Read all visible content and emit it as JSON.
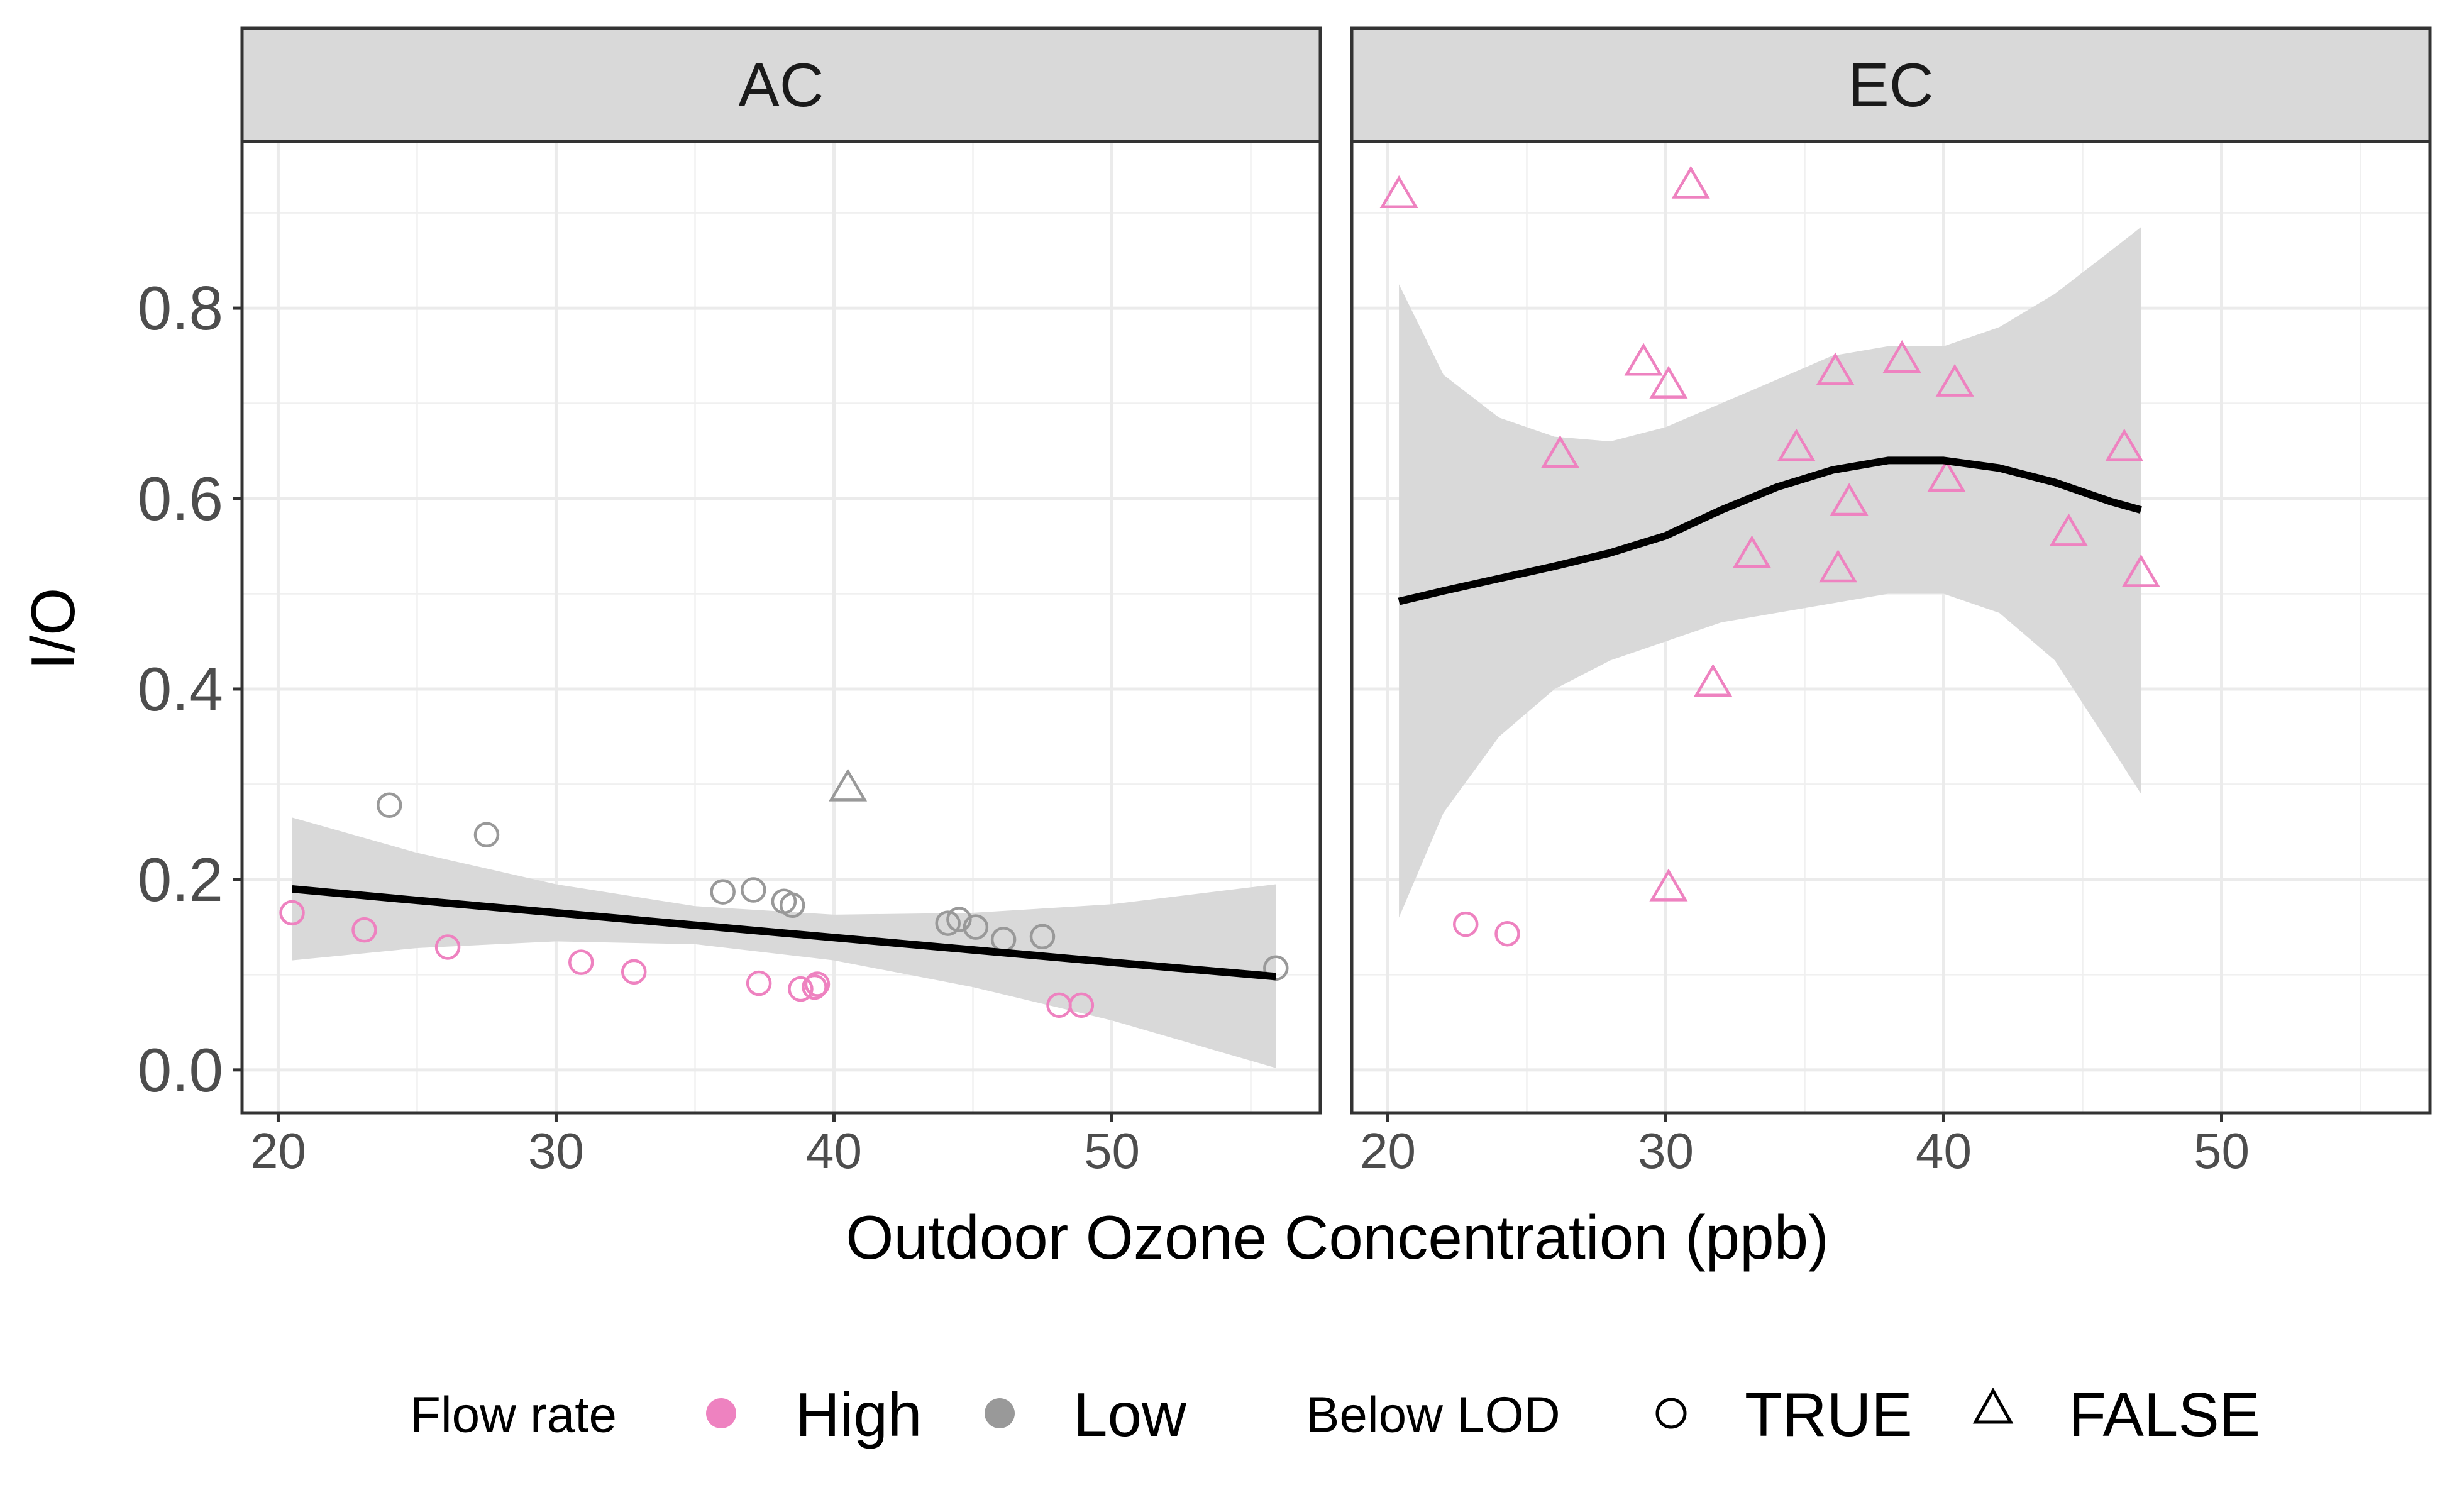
{
  "chart_data": {
    "type": "scatter",
    "title": "",
    "xlabel": "Outdoor Ozone Concentration (ppb)",
    "ylabel": "I/O",
    "xlim": [
      18.7,
      57.5
    ],
    "ylim": [
      -0.045,
      0.975
    ],
    "xticks": [
      20,
      30,
      40,
      50
    ],
    "xtick_labels": [
      "20",
      "30",
      "40",
      "50"
    ],
    "yticks": [
      0.0,
      0.2,
      0.4,
      0.6,
      0.8
    ],
    "ytick_labels": [
      "0.0",
      "0.2",
      "0.4",
      "0.6",
      "0.8"
    ],
    "grid": true,
    "legend_position": "bottom",
    "colors": {
      "High": "#ee82c0",
      "Low": "#999999",
      "fit": "#000000",
      "ribbon": "#d9d9d9",
      "strip": "#d9d9d9"
    },
    "legend": {
      "flow_title": "Flow rate",
      "flow_items": [
        {
          "label": "High",
          "color": "#ee82c0"
        },
        {
          "label": "Low",
          "color": "#999999"
        }
      ],
      "lod_title": "Below LOD",
      "lod_items": [
        {
          "label": "TRUE",
          "shape": "circle"
        },
        {
          "label": "FALSE",
          "shape": "triangle"
        }
      ]
    },
    "panels": [
      {
        "strip": "AC",
        "points": [
          {
            "x": 20.5,
            "y": 0.165,
            "flow": "High",
            "below_lod": true
          },
          {
            "x": 23.1,
            "y": 0.147,
            "flow": "High",
            "below_lod": true
          },
          {
            "x": 26.1,
            "y": 0.129,
            "flow": "High",
            "below_lod": true
          },
          {
            "x": 30.9,
            "y": 0.113,
            "flow": "High",
            "below_lod": true
          },
          {
            "x": 32.8,
            "y": 0.103,
            "flow": "High",
            "below_lod": true
          },
          {
            "x": 37.3,
            "y": 0.091,
            "flow": "High",
            "below_lod": true
          },
          {
            "x": 38.8,
            "y": 0.085,
            "flow": "High",
            "below_lod": true
          },
          {
            "x": 39.3,
            "y": 0.087,
            "flow": "High",
            "below_lod": true
          },
          {
            "x": 39.4,
            "y": 0.09,
            "flow": "High",
            "below_lod": true
          },
          {
            "x": 48.1,
            "y": 0.068,
            "flow": "High",
            "below_lod": true
          },
          {
            "x": 48.9,
            "y": 0.068,
            "flow": "High",
            "below_lod": true
          },
          {
            "x": 24.0,
            "y": 0.278,
            "flow": "Low",
            "below_lod": true
          },
          {
            "x": 27.5,
            "y": 0.247,
            "flow": "Low",
            "below_lod": true
          },
          {
            "x": 36.0,
            "y": 0.187,
            "flow": "Low",
            "below_lod": true
          },
          {
            "x": 37.1,
            "y": 0.189,
            "flow": "Low",
            "below_lod": true
          },
          {
            "x": 38.2,
            "y": 0.177,
            "flow": "Low",
            "below_lod": true
          },
          {
            "x": 38.5,
            "y": 0.173,
            "flow": "Low",
            "below_lod": true
          },
          {
            "x": 44.1,
            "y": 0.154,
            "flow": "Low",
            "below_lod": true
          },
          {
            "x": 44.5,
            "y": 0.158,
            "flow": "Low",
            "below_lod": true
          },
          {
            "x": 45.1,
            "y": 0.15,
            "flow": "Low",
            "below_lod": true
          },
          {
            "x": 46.1,
            "y": 0.137,
            "flow": "Low",
            "below_lod": true
          },
          {
            "x": 47.5,
            "y": 0.14,
            "flow": "Low",
            "below_lod": true
          },
          {
            "x": 55.9,
            "y": 0.107,
            "flow": "Low",
            "below_lod": true
          },
          {
            "x": 40.5,
            "y": 0.295,
            "flow": "Low",
            "below_lod": false
          }
        ],
        "fit": {
          "x": [
            20.5,
            25,
            30,
            35,
            40,
            45,
            50,
            55.9
          ],
          "y": [
            0.19,
            0.178,
            0.165,
            0.152,
            0.139,
            0.126,
            0.113,
            0.098
          ],
          "lower": [
            0.115,
            0.128,
            0.135,
            0.132,
            0.115,
            0.087,
            0.052,
            0.002
          ],
          "upper": [
            0.265,
            0.228,
            0.195,
            0.172,
            0.163,
            0.165,
            0.174,
            0.195
          ]
        }
      },
      {
        "strip": "EC",
        "points": [
          {
            "x": 22.8,
            "y": 0.153,
            "flow": "High",
            "below_lod": true
          },
          {
            "x": 24.3,
            "y": 0.143,
            "flow": "High",
            "below_lod": true
          },
          {
            "x": 20.4,
            "y": 0.918,
            "flow": "High",
            "below_lod": false
          },
          {
            "x": 30.9,
            "y": 0.928,
            "flow": "High",
            "below_lod": false
          },
          {
            "x": 29.2,
            "y": 0.742,
            "flow": "High",
            "below_lod": false
          },
          {
            "x": 30.1,
            "y": 0.718,
            "flow": "High",
            "below_lod": false
          },
          {
            "x": 26.2,
            "y": 0.645,
            "flow": "High",
            "below_lod": false
          },
          {
            "x": 36.1,
            "y": 0.732,
            "flow": "High",
            "below_lod": false
          },
          {
            "x": 38.5,
            "y": 0.745,
            "flow": "High",
            "below_lod": false
          },
          {
            "x": 40.4,
            "y": 0.72,
            "flow": "High",
            "below_lod": false
          },
          {
            "x": 34.7,
            "y": 0.652,
            "flow": "High",
            "below_lod": false
          },
          {
            "x": 40.1,
            "y": 0.62,
            "flow": "High",
            "below_lod": false
          },
          {
            "x": 36.6,
            "y": 0.595,
            "flow": "High",
            "below_lod": false
          },
          {
            "x": 46.5,
            "y": 0.652,
            "flow": "High",
            "below_lod": false
          },
          {
            "x": 44.5,
            "y": 0.563,
            "flow": "High",
            "below_lod": false
          },
          {
            "x": 33.1,
            "y": 0.54,
            "flow": "High",
            "below_lod": false
          },
          {
            "x": 36.2,
            "y": 0.525,
            "flow": "High",
            "below_lod": false
          },
          {
            "x": 47.1,
            "y": 0.52,
            "flow": "High",
            "below_lod": false
          },
          {
            "x": 31.7,
            "y": 0.405,
            "flow": "High",
            "below_lod": false
          },
          {
            "x": 30.1,
            "y": 0.19,
            "flow": "High",
            "below_lod": false
          }
        ],
        "fit": {
          "x": [
            20.4,
            22,
            24,
            26,
            28,
            30,
            32,
            34,
            36,
            38,
            40,
            42,
            44,
            46,
            47.1
          ],
          "y": [
            0.492,
            0.503,
            0.516,
            0.529,
            0.543,
            0.561,
            0.588,
            0.612,
            0.63,
            0.64,
            0.64,
            0.632,
            0.617,
            0.597,
            0.588
          ],
          "lower": [
            0.16,
            0.27,
            0.35,
            0.4,
            0.43,
            0.45,
            0.47,
            0.48,
            0.49,
            0.5,
            0.5,
            0.48,
            0.43,
            0.34,
            0.29
          ],
          "upper": [
            0.825,
            0.73,
            0.685,
            0.665,
            0.66,
            0.675,
            0.7,
            0.725,
            0.75,
            0.76,
            0.76,
            0.78,
            0.815,
            0.86,
            0.885
          ]
        }
      }
    ]
  }
}
